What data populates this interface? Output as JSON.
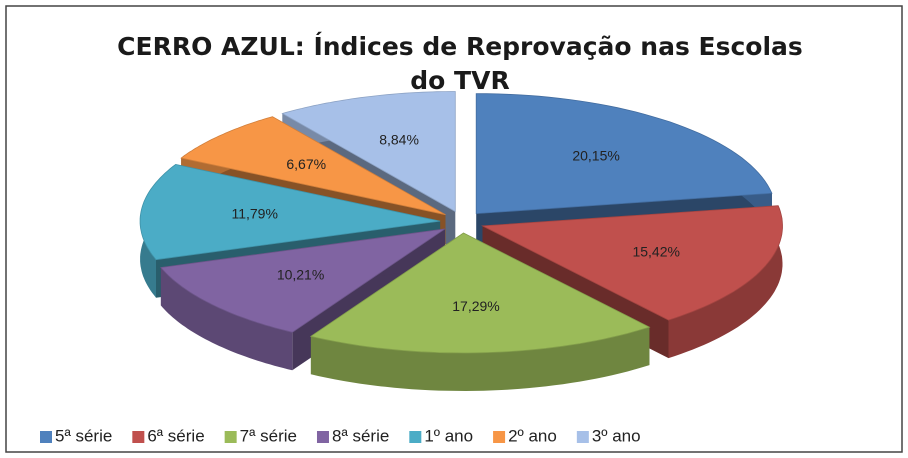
{
  "chart_data": {
    "type": "pie3d",
    "title": "CERRO AZUL: Índices de Reprovação nas Escolas do TVR",
    "categories": [
      "5ª série",
      "6ª série",
      "7ª série",
      "8ª série",
      "1º ano",
      "2º ano",
      "3º ano"
    ],
    "values": [
      20.15,
      15.42,
      17.29,
      10.21,
      11.79,
      6.67,
      8.84
    ],
    "value_labels": [
      "20,15%",
      "15,42%",
      "17,29%",
      "10,21%",
      "11,79%",
      "6,67%",
      "8,84%"
    ],
    "colors": [
      "#4f81bd",
      "#c0504d",
      "#9bbb59",
      "#8064a2",
      "#4bacc6",
      "#f79646",
      "#a7c0e8"
    ],
    "legend": "bottom"
  }
}
